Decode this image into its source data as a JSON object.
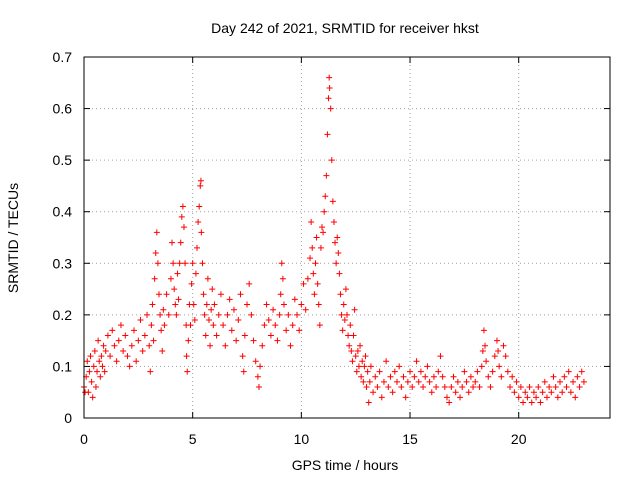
{
  "chart_data": {
    "type": "scatter",
    "title": "Day 242 of 2021, SRMTID for receiver hkst",
    "xlabel": "GPS time / hours",
    "ylabel": "SRMTID / TECUs",
    "xlim": [
      0,
      24.2
    ],
    "ylim": [
      0,
      0.7
    ],
    "x_ticks": [
      0,
      5,
      10,
      15,
      20
    ],
    "x_tick_labels": [
      "0",
      "5",
      "10",
      "15",
      "20"
    ],
    "y_ticks": [
      0,
      0.1,
      0.2,
      0.3,
      0.4,
      0.5,
      0.6,
      0.7
    ],
    "y_tick_labels": [
      "0",
      "0.1",
      "0.2",
      "0.3",
      "0.4",
      "0.5",
      "0.6",
      "0.7"
    ],
    "grid": true,
    "marker": "+",
    "color": "#ff0000",
    "series": [
      {
        "name": "SRMTID",
        "points": [
          [
            0.0,
            0.06
          ],
          [
            0.05,
            0.05
          ],
          [
            0.1,
            0.08
          ],
          [
            0.15,
            0.11
          ],
          [
            0.2,
            0.05
          ],
          [
            0.25,
            0.09
          ],
          [
            0.3,
            0.12
          ],
          [
            0.35,
            0.07
          ],
          [
            0.4,
            0.04
          ],
          [
            0.45,
            0.1
          ],
          [
            0.5,
            0.13
          ],
          [
            0.55,
            0.06
          ],
          [
            0.6,
            0.09
          ],
          [
            0.65,
            0.15
          ],
          [
            0.7,
            0.11
          ],
          [
            0.75,
            0.08
          ],
          [
            0.8,
            0.12
          ],
          [
            0.85,
            0.1
          ],
          [
            0.9,
            0.14
          ],
          [
            0.95,
            0.09
          ],
          [
            1.0,
            0.13
          ],
          [
            1.1,
            0.16
          ],
          [
            1.2,
            0.12
          ],
          [
            1.3,
            0.17
          ],
          [
            1.4,
            0.14
          ],
          [
            1.5,
            0.11
          ],
          [
            1.6,
            0.15
          ],
          [
            1.7,
            0.18
          ],
          [
            1.8,
            0.13
          ],
          [
            1.9,
            0.16
          ],
          [
            2.0,
            0.12
          ],
          [
            2.1,
            0.1
          ],
          [
            2.2,
            0.14
          ],
          [
            2.3,
            0.17
          ],
          [
            2.4,
            0.11
          ],
          [
            2.5,
            0.15
          ],
          [
            2.6,
            0.19
          ],
          [
            2.7,
            0.13
          ],
          [
            2.8,
            0.16
          ],
          [
            2.9,
            0.2
          ],
          [
            3.0,
            0.14
          ],
          [
            3.05,
            0.09
          ],
          [
            3.1,
            0.18
          ],
          [
            3.15,
            0.22
          ],
          [
            3.2,
            0.15
          ],
          [
            3.25,
            0.27
          ],
          [
            3.3,
            0.32
          ],
          [
            3.35,
            0.36
          ],
          [
            3.4,
            0.3
          ],
          [
            3.45,
            0.24
          ],
          [
            3.5,
            0.2
          ],
          [
            3.55,
            0.17
          ],
          [
            3.6,
            0.13
          ],
          [
            3.65,
            0.21
          ],
          [
            3.7,
            0.18
          ],
          [
            3.8,
            0.24
          ],
          [
            3.9,
            0.2
          ],
          [
            4.0,
            0.27
          ],
          [
            4.05,
            0.34
          ],
          [
            4.1,
            0.3
          ],
          [
            4.15,
            0.25
          ],
          [
            4.2,
            0.22
          ],
          [
            4.25,
            0.2
          ],
          [
            4.3,
            0.28
          ],
          [
            4.35,
            0.23
          ],
          [
            4.4,
            0.3
          ],
          [
            4.45,
            0.34
          ],
          [
            4.5,
            0.39
          ],
          [
            4.55,
            0.41
          ],
          [
            4.6,
            0.37
          ],
          [
            4.65,
            0.3
          ],
          [
            4.7,
            0.18
          ],
          [
            4.72,
            0.12
          ],
          [
            4.75,
            0.09
          ],
          [
            4.8,
            0.15
          ],
          [
            4.85,
            0.22
          ],
          [
            4.9,
            0.18
          ],
          [
            4.95,
            0.26
          ],
          [
            5.0,
            0.3
          ],
          [
            5.05,
            0.22
          ],
          [
            5.1,
            0.19
          ],
          [
            5.15,
            0.28
          ],
          [
            5.2,
            0.33
          ],
          [
            5.25,
            0.38
          ],
          [
            5.3,
            0.41
          ],
          [
            5.35,
            0.45
          ],
          [
            5.38,
            0.46
          ],
          [
            5.4,
            0.36
          ],
          [
            5.45,
            0.3
          ],
          [
            5.5,
            0.24
          ],
          [
            5.55,
            0.2
          ],
          [
            5.6,
            0.16
          ],
          [
            5.65,
            0.22
          ],
          [
            5.7,
            0.27
          ],
          [
            5.75,
            0.19
          ],
          [
            5.8,
            0.14
          ],
          [
            5.85,
            0.21
          ],
          [
            5.9,
            0.25
          ],
          [
            5.95,
            0.18
          ],
          [
            6.0,
            0.22
          ],
          [
            6.1,
            0.16
          ],
          [
            6.2,
            0.2
          ],
          [
            6.3,
            0.24
          ],
          [
            6.4,
            0.18
          ],
          [
            6.5,
            0.14
          ],
          [
            6.6,
            0.2
          ],
          [
            6.7,
            0.23
          ],
          [
            6.8,
            0.17
          ],
          [
            6.9,
            0.21
          ],
          [
            7.0,
            0.15
          ],
          [
            7.1,
            0.19
          ],
          [
            7.2,
            0.24
          ],
          [
            7.3,
            0.12
          ],
          [
            7.35,
            0.09
          ],
          [
            7.4,
            0.16
          ],
          [
            7.5,
            0.22
          ],
          [
            7.6,
            0.26
          ],
          [
            7.7,
            0.2
          ],
          [
            7.8,
            0.15
          ],
          [
            7.9,
            0.11
          ],
          [
            8.0,
            0.08
          ],
          [
            8.05,
            0.06
          ],
          [
            8.1,
            0.1
          ],
          [
            8.2,
            0.14
          ],
          [
            8.3,
            0.18
          ],
          [
            8.4,
            0.22
          ],
          [
            8.5,
            0.19
          ],
          [
            8.6,
            0.16
          ],
          [
            8.7,
            0.21
          ],
          [
            8.8,
            0.18
          ],
          [
            8.9,
            0.15
          ],
          [
            9.0,
            0.2
          ],
          [
            9.05,
            0.24
          ],
          [
            9.1,
            0.3
          ],
          [
            9.15,
            0.27
          ],
          [
            9.2,
            0.22
          ],
          [
            9.3,
            0.17
          ],
          [
            9.4,
            0.2
          ],
          [
            9.5,
            0.14
          ],
          [
            9.6,
            0.18
          ],
          [
            9.7,
            0.23
          ],
          [
            9.8,
            0.2
          ],
          [
            9.9,
            0.17
          ],
          [
            10.0,
            0.22
          ],
          [
            10.1,
            0.26
          ],
          [
            10.2,
            0.21
          ],
          [
            10.3,
            0.27
          ],
          [
            10.4,
            0.31
          ],
          [
            10.45,
            0.38
          ],
          [
            10.5,
            0.33
          ],
          [
            10.55,
            0.28
          ],
          [
            10.6,
            0.24
          ],
          [
            10.65,
            0.3
          ],
          [
            10.7,
            0.35
          ],
          [
            10.75,
            0.26
          ],
          [
            10.8,
            0.22
          ],
          [
            10.85,
            0.18
          ],
          [
            10.9,
            0.33
          ],
          [
            10.95,
            0.37
          ],
          [
            11.0,
            0.36
          ],
          [
            11.05,
            0.4
          ],
          [
            11.1,
            0.43
          ],
          [
            11.15,
            0.47
          ],
          [
            11.2,
            0.55
          ],
          [
            11.25,
            0.62
          ],
          [
            11.28,
            0.66
          ],
          [
            11.3,
            0.64
          ],
          [
            11.35,
            0.6
          ],
          [
            11.4,
            0.5
          ],
          [
            11.45,
            0.42
          ],
          [
            11.5,
            0.38
          ],
          [
            11.55,
            0.34
          ],
          [
            11.6,
            0.3
          ],
          [
            11.65,
            0.35
          ],
          [
            11.7,
            0.32
          ],
          [
            11.75,
            0.28
          ],
          [
            11.8,
            0.24
          ],
          [
            11.85,
            0.2
          ],
          [
            11.9,
            0.17
          ],
          [
            11.95,
            0.22
          ],
          [
            12.0,
            0.19
          ],
          [
            12.05,
            0.25
          ],
          [
            12.1,
            0.2
          ],
          [
            12.15,
            0.16
          ],
          [
            12.2,
            0.14
          ],
          [
            12.25,
            0.18
          ],
          [
            12.3,
            0.13
          ],
          [
            12.35,
            0.11
          ],
          [
            12.4,
            0.16
          ],
          [
            12.45,
            0.21
          ],
          [
            12.5,
            0.12
          ],
          [
            12.55,
            0.09
          ],
          [
            12.6,
            0.13
          ],
          [
            12.65,
            0.1
          ],
          [
            12.7,
            0.14
          ],
          [
            12.75,
            0.08
          ],
          [
            12.8,
            0.11
          ],
          [
            12.85,
            0.07
          ],
          [
            12.9,
            0.1
          ],
          [
            12.95,
            0.12
          ],
          [
            13.0,
            0.06
          ],
          [
            13.05,
            0.09
          ],
          [
            13.1,
            0.03
          ],
          [
            13.15,
            0.07
          ],
          [
            13.2,
            0.1
          ],
          [
            13.3,
            0.05
          ],
          [
            13.4,
            0.08
          ],
          [
            13.5,
            0.06
          ],
          [
            13.6,
            0.09
          ],
          [
            13.7,
            0.04
          ],
          [
            13.8,
            0.07
          ],
          [
            13.9,
            0.11
          ],
          [
            14.0,
            0.06
          ],
          [
            14.1,
            0.08
          ],
          [
            14.2,
            0.05
          ],
          [
            14.3,
            0.09
          ],
          [
            14.4,
            0.07
          ],
          [
            14.5,
            0.1
          ],
          [
            14.6,
            0.06
          ],
          [
            14.7,
            0.08
          ],
          [
            14.8,
            0.04
          ],
          [
            14.9,
            0.07
          ],
          [
            15.0,
            0.09
          ],
          [
            15.1,
            0.06
          ],
          [
            15.2,
            0.08
          ],
          [
            15.3,
            0.11
          ],
          [
            15.4,
            0.07
          ],
          [
            15.5,
            0.09
          ],
          [
            15.6,
            0.06
          ],
          [
            15.7,
            0.08
          ],
          [
            15.8,
            0.1
          ],
          [
            15.9,
            0.07
          ],
          [
            16.0,
            0.05
          ],
          [
            16.1,
            0.08
          ],
          [
            16.2,
            0.06
          ],
          [
            16.3,
            0.09
          ],
          [
            16.4,
            0.12
          ],
          [
            16.5,
            0.08
          ],
          [
            16.6,
            0.06
          ],
          [
            16.7,
            0.04
          ],
          [
            16.8,
            0.03
          ],
          [
            16.9,
            0.06
          ],
          [
            17.0,
            0.08
          ],
          [
            17.1,
            0.05
          ],
          [
            17.2,
            0.07
          ],
          [
            17.3,
            0.04
          ],
          [
            17.4,
            0.06
          ],
          [
            17.5,
            0.09
          ],
          [
            17.6,
            0.07
          ],
          [
            17.7,
            0.05
          ],
          [
            17.8,
            0.08
          ],
          [
            17.9,
            0.06
          ],
          [
            18.0,
            0.07
          ],
          [
            18.1,
            0.09
          ],
          [
            18.2,
            0.06
          ],
          [
            18.3,
            0.1
          ],
          [
            18.35,
            0.13
          ],
          [
            18.4,
            0.17
          ],
          [
            18.45,
            0.14
          ],
          [
            18.5,
            0.11
          ],
          [
            18.6,
            0.08
          ],
          [
            18.7,
            0.06
          ],
          [
            18.8,
            0.09
          ],
          [
            18.9,
            0.12
          ],
          [
            19.0,
            0.15
          ],
          [
            19.05,
            0.13
          ],
          [
            19.1,
            0.1
          ],
          [
            19.2,
            0.08
          ],
          [
            19.3,
            0.14
          ],
          [
            19.4,
            0.12
          ],
          [
            19.5,
            0.09
          ],
          [
            19.6,
            0.06
          ],
          [
            19.7,
            0.08
          ],
          [
            19.8,
            0.05
          ],
          [
            19.9,
            0.07
          ],
          [
            20.0,
            0.04
          ],
          [
            20.1,
            0.06
          ],
          [
            20.2,
            0.03
          ],
          [
            20.3,
            0.05
          ],
          [
            20.4,
            0.04
          ],
          [
            20.5,
            0.06
          ],
          [
            20.6,
            0.03
          ],
          [
            20.7,
            0.05
          ],
          [
            20.8,
            0.04
          ],
          [
            20.9,
            0.06
          ],
          [
            21.0,
            0.03
          ],
          [
            21.1,
            0.05
          ],
          [
            21.2,
            0.07
          ],
          [
            21.3,
            0.04
          ],
          [
            21.4,
            0.06
          ],
          [
            21.5,
            0.05
          ],
          [
            21.6,
            0.08
          ],
          [
            21.7,
            0.06
          ],
          [
            21.8,
            0.04
          ],
          [
            21.9,
            0.07
          ],
          [
            22.0,
            0.05
          ],
          [
            22.1,
            0.08
          ],
          [
            22.2,
            0.06
          ],
          [
            22.3,
            0.09
          ],
          [
            22.4,
            0.05
          ],
          [
            22.5,
            0.07
          ],
          [
            22.6,
            0.04
          ],
          [
            22.7,
            0.08
          ],
          [
            22.8,
            0.06
          ],
          [
            22.9,
            0.09
          ],
          [
            23.0,
            0.07
          ]
        ]
      }
    ]
  }
}
